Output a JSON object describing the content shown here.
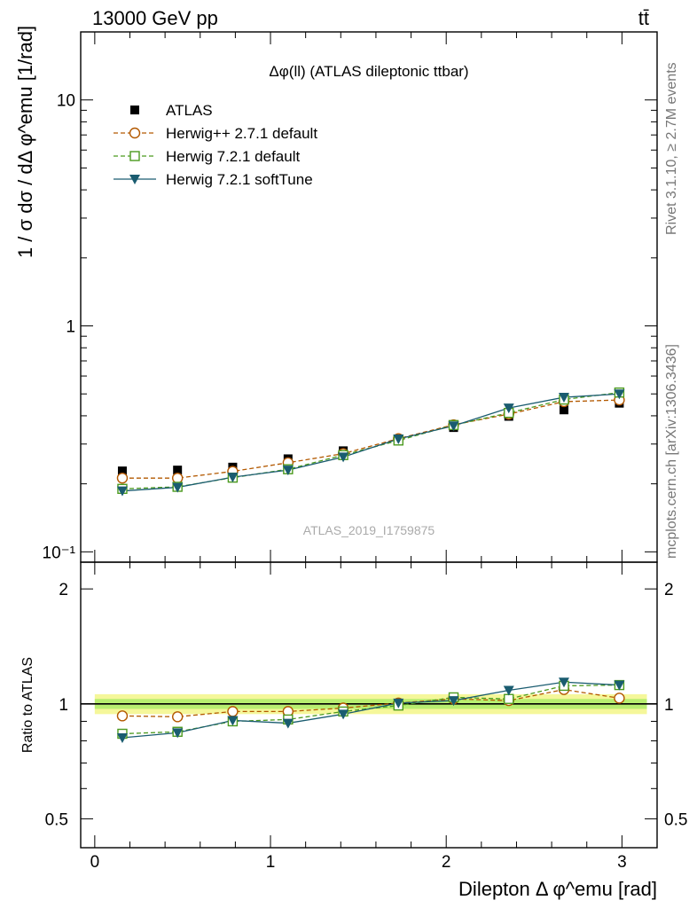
{
  "header": {
    "energy_label": "13000 GeV pp",
    "process_label": "tt̄"
  },
  "side_labels": {
    "rivet": "Rivet 3.1.10, ≥ 2.7M events",
    "mcplots": "mcplots.cern.ch [arXiv:1306.3436]"
  },
  "watermark": "ATLAS_2019_I1759875",
  "colors": {
    "atlas": "#000000",
    "herwigpp": "#b35900",
    "herwig721": "#4b9a1e",
    "softtune": "#1a5c70",
    "band_outer": "#f5f79a",
    "band_inner": "#b8ee70"
  },
  "chart_data": [
    {
      "type": "line",
      "title": "Δφ(ll) (ATLAS dileptonic ttbar)",
      "ylabel": "1 / σ  dσ / dΔ φ^emu [1/rad]",
      "yscale": "log",
      "ylim": [
        0.09,
        20
      ],
      "xlim": [
        -0.08,
        3.2
      ],
      "y_ticks": [
        {
          "value": 0.1,
          "label": "10⁻¹"
        },
        {
          "value": 1,
          "label": "1"
        },
        {
          "value": 10,
          "label": "10"
        }
      ],
      "x": [
        0.157,
        0.471,
        0.785,
        1.1,
        1.414,
        1.728,
        2.042,
        2.356,
        2.67,
        2.985
      ],
      "series": [
        {
          "name": "ATLAS",
          "style": "square-marker",
          "values": [
            0.228,
            0.23,
            0.237,
            0.258,
            0.28,
            0.315,
            0.355,
            0.398,
            0.425,
            0.455
          ]
        },
        {
          "name": "Herwig++ 2.7.1 default",
          "style": "dashed-circle",
          "values": [
            0.212,
            0.212,
            0.227,
            0.248,
            0.272,
            0.317,
            0.365,
            0.407,
            0.462,
            0.47
          ]
        },
        {
          "name": "Herwig 7.2.1 default",
          "style": "dashed-open-square",
          "values": [
            0.19,
            0.194,
            0.213,
            0.232,
            0.268,
            0.311,
            0.364,
            0.412,
            0.472,
            0.507
          ]
        },
        {
          "name": "Herwig 7.2.1 softTune",
          "style": "solid-triangle",
          "values": [
            0.186,
            0.193,
            0.214,
            0.23,
            0.263,
            0.316,
            0.361,
            0.433,
            0.483,
            0.5
          ]
        }
      ],
      "legend_placement": "top-left"
    },
    {
      "type": "line",
      "ylabel": "Ratio to ATLAS",
      "xlabel": "Dilepton Δ φ^emu [rad]",
      "yscale": "log",
      "ylim": [
        0.42,
        2.35
      ],
      "xlim": [
        -0.08,
        3.2
      ],
      "y_ticks": [
        {
          "value": 0.5,
          "label": "0.5"
        },
        {
          "value": 1,
          "label": "1"
        },
        {
          "value": 2,
          "label": "2"
        }
      ],
      "x_ticks": [
        {
          "value": 0,
          "label": "0"
        },
        {
          "value": 1,
          "label": "1"
        },
        {
          "value": 2,
          "label": "2"
        },
        {
          "value": 3,
          "label": "3"
        }
      ],
      "x": [
        0.157,
        0.471,
        0.785,
        1.1,
        1.414,
        1.728,
        2.042,
        2.356,
        2.67,
        2.985
      ],
      "band": {
        "outer": 0.06,
        "inner": 0.03
      },
      "series": [
        {
          "name": "Herwig++ 2.7.1 default",
          "values": [
            0.93,
            0.925,
            0.955,
            0.955,
            0.975,
            1.005,
            1.03,
            1.02,
            1.09,
            1.035
          ]
        },
        {
          "name": "Herwig 7.2.1 default",
          "values": [
            0.835,
            0.845,
            0.9,
            0.91,
            0.955,
            0.99,
            1.04,
            1.03,
            1.115,
            1.12
          ]
        },
        {
          "name": "Herwig 7.2.1 softTune",
          "values": [
            0.815,
            0.84,
            0.905,
            0.89,
            0.94,
            1.005,
            1.02,
            1.085,
            1.14,
            1.12
          ]
        }
      ]
    }
  ]
}
